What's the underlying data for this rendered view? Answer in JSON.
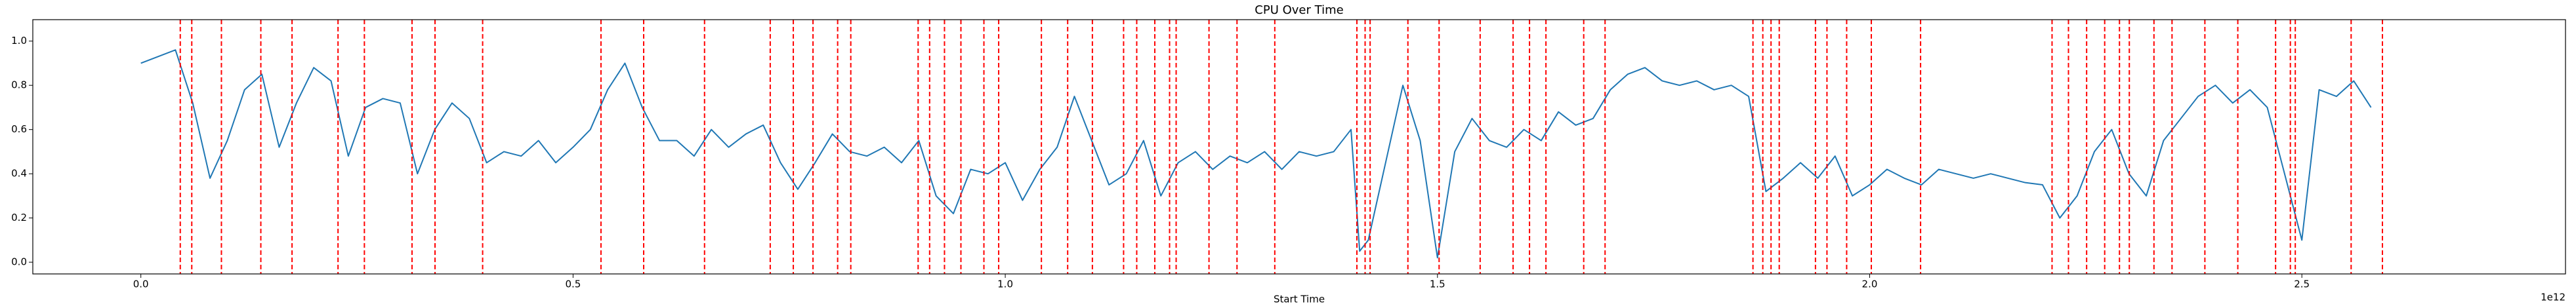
{
  "chart_data": {
    "type": "line",
    "title": "CPU Over Time",
    "x_label": "Start Time",
    "x_offset_label": "1e12",
    "color": "#1f77b4",
    "x": [
      0,
      20000000000.0,
      40000000000.0,
      60000000000.0,
      80000000000.0,
      100000000000.0,
      120000000000.0,
      140000000000.0,
      160000000000.0,
      180000000000.0,
      200000000000.0,
      220000000000.0,
      240000000000.0,
      260000000000.0,
      280000000000.0,
      300000000000.0,
      320000000000.0,
      340000000000.0,
      360000000000.0,
      380000000000.0,
      400000000000.0,
      420000000000.0,
      440000000000.0,
      460000000000.0,
      480000000000.0,
      500000000000.0,
      520000000000.0,
      540000000000.0,
      560000000000.0,
      580000000000.0,
      600000000000.0,
      620000000000.0,
      640000000000.0,
      660000000000.0,
      680000000000.0,
      700000000000.0,
      720000000000.0,
      740000000000.0,
      760000000000.0,
      780000000000.0,
      800000000000.0,
      820000000000.0,
      840000000000.0,
      860000000000.0,
      880000000000.0,
      900000000000.0,
      920000000000.0,
      940000000000.0,
      960000000000.0,
      980000000000.0,
      1000000000000.0,
      1020000000000.0,
      1040000000000.0,
      1060000000000.0,
      1080000000000.0,
      1100000000000.0,
      1120000000000.0,
      1140000000000.0,
      1160000000000.0,
      1180000000000.0,
      1200000000000.0,
      1220000000000.0,
      1240000000000.0,
      1260000000000.0,
      1280000000000.0,
      1300000000000.0,
      1320000000000.0,
      1340000000000.0,
      1360000000000.0,
      1380000000000.0,
      1400000000000.0,
      1410000000000.0,
      1420000000000.0,
      1440000000000.0,
      1460000000000.0,
      1480000000000.0,
      1500000000000.0,
      1520000000000.0,
      1540000000000.0,
      1560000000000.0,
      1580000000000.0,
      1600000000000.0,
      1620000000000.0,
      1640000000000.0,
      1660000000000.0,
      1680000000000.0,
      1700000000000.0,
      1720000000000.0,
      1740000000000.0,
      1760000000000.0,
      1780000000000.0,
      1800000000000.0,
      1820000000000.0,
      1840000000000.0,
      1860000000000.0,
      1880000000000.0,
      1900000000000.0,
      1920000000000.0,
      1940000000000.0,
      1960000000000.0,
      1980000000000.0,
      2000000000000.0,
      2020000000000.0,
      2040000000000.0,
      2060000000000.0,
      2080000000000.0,
      2100000000000.0,
      2120000000000.0,
      2140000000000.0,
      2160000000000.0,
      2180000000000.0,
      2200000000000.0,
      2220000000000.0,
      2240000000000.0,
      2260000000000.0,
      2280000000000.0,
      2300000000000.0,
      2320000000000.0,
      2340000000000.0,
      2360000000000.0,
      2380000000000.0,
      2400000000000.0,
      2420000000000.0,
      2440000000000.0,
      2460000000000.0,
      2480000000000.0,
      2500000000000.0,
      2520000000000.0,
      2540000000000.0,
      2560000000000.0,
      2580000000000.0
    ],
    "values": [
      0.9,
      0.93,
      0.96,
      0.72,
      0.38,
      0.55,
      0.78,
      0.85,
      0.52,
      0.72,
      0.88,
      0.82,
      0.48,
      0.7,
      0.74,
      0.72,
      0.4,
      0.6,
      0.72,
      0.65,
      0.45,
      0.5,
      0.48,
      0.55,
      0.45,
      0.52,
      0.6,
      0.78,
      0.9,
      0.7,
      0.55,
      0.55,
      0.48,
      0.6,
      0.52,
      0.58,
      0.62,
      0.45,
      0.33,
      0.45,
      0.58,
      0.5,
      0.48,
      0.52,
      0.45,
      0.55,
      0.3,
      0.22,
      0.42,
      0.4,
      0.45,
      0.28,
      0.42,
      0.52,
      0.75,
      0.55,
      0.35,
      0.4,
      0.55,
      0.3,
      0.45,
      0.5,
      0.42,
      0.48,
      0.45,
      0.5,
      0.42,
      0.5,
      0.48,
      0.5,
      0.6,
      0.05,
      0.1,
      0.45,
      0.8,
      0.55,
      0.02,
      0.5,
      0.65,
      0.55,
      0.52,
      0.6,
      0.55,
      0.68,
      0.62,
      0.65,
      0.78,
      0.85,
      0.88,
      0.82,
      0.8,
      0.82,
      0.78,
      0.8,
      0.75,
      0.32,
      0.38,
      0.45,
      0.38,
      0.48,
      0.3,
      0.35,
      0.42,
      0.38,
      0.35,
      0.42,
      0.4,
      0.38,
      0.4,
      0.38,
      0.36,
      0.35,
      0.2,
      0.3,
      0.5,
      0.6,
      0.4,
      0.3,
      0.55,
      0.65,
      0.75,
      0.8,
      0.72,
      0.78,
      0.7,
      0.4,
      0.1,
      0.78,
      0.75,
      0.82,
      0.7
    ],
    "vlines": {
      "color": "#ff0000",
      "style": "dashed",
      "x": [
        45600000000.0,
        58900000000.0,
        93200000000.0,
        138800000000.0,
        174900000000.0,
        228100000000.0,
        258600000000.0,
        313700000000.0,
        340300000000.0,
        395400000000.0,
        532300000000.0,
        581700000000.0,
        652100000000.0,
        728100000000.0,
        754800000000.0,
        777600000000.0,
        806100000000.0,
        821300000000.0,
        899200000000.0,
        912500000000.0,
        929700000000.0,
        948700000000.0,
        975300000000.0,
        992400000000.0,
        1041800000000.0,
        1072200000000.0,
        1100800000000.0,
        1136900000000.0,
        1152100000000.0,
        1173000000000.0,
        1190100000000.0,
        1197700000000.0,
        1235700000000.0,
        1268100000000.0,
        1311800000000.0,
        1406800000000.0,
        1416300000000.0,
        1422100000000.0,
        1465800000000.0,
        1501900000000.0,
        1549400000000.0,
        1587500000000.0,
        1606500000000.0,
        1625500000000.0,
        1669200000000.0,
        1693900000000.0,
        1865000000000.0,
        1876400000000.0,
        1885900000000.0,
        1895400000000.0,
        1937300000000.0,
        1950600000000.0,
        1973400000000.0,
        2001900000000.0,
        2058900000000.0,
        2211000000000.0,
        2230000000000.0,
        2251000000000.0,
        2271900000000.0,
        2289000000000.0,
        2300400000000.0,
        2328900000000.0,
        2349800000000.0,
        2387800000000.0,
        2425900000000.0,
        2469600000000.0,
        2486700000000.0,
        2492400000000.0,
        2557000000000.0,
        2593200000000.0
      ]
    },
    "xlim": [
      -125000000000.0,
      2805000000000.0
    ],
    "ylim": [
      -0.053,
      1.097
    ],
    "xticks": [
      {
        "value": 0,
        "label": "0.0"
      },
      {
        "value": 500000000000.0,
        "label": "0.5"
      },
      {
        "value": 1000000000000.0,
        "label": "1.0"
      },
      {
        "value": 1500000000000.0,
        "label": "1.5"
      },
      {
        "value": 2000000000000.0,
        "label": "2.0"
      },
      {
        "value": 2500000000000.0,
        "label": "2.5"
      }
    ],
    "yticks": [
      {
        "value": 0,
        "label": "0.0"
      },
      {
        "value": 0.2,
        "label": "0.2"
      },
      {
        "value": 0.4,
        "label": "0.4"
      },
      {
        "value": 0.6,
        "label": "0.6"
      },
      {
        "value": 0.8,
        "label": "0.8"
      },
      {
        "value": 1,
        "label": "1.0"
      }
    ],
    "grid": false
  }
}
